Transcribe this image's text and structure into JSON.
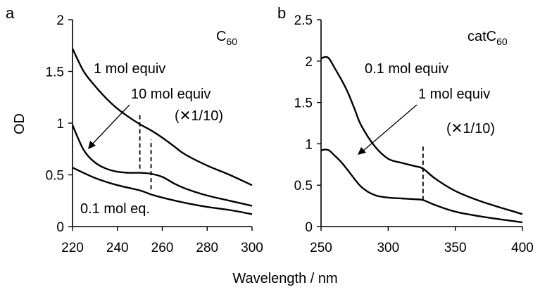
{
  "figure": {
    "ylabel": "OD",
    "xlabel": "Wavelength / nm"
  },
  "chart_data": [
    {
      "type": "line",
      "panel_label": "a",
      "compound_label": "C",
      "compound_subscript": "60",
      "xlim": [
        220,
        300
      ],
      "ylim": [
        0,
        2
      ],
      "x_ticks": [
        "220",
        "240",
        "260",
        "280",
        "300"
      ],
      "y_ticks": [
        "0",
        "0.5",
        "1",
        "1.5",
        "2"
      ],
      "series": [
        {
          "x": [
            220,
            225,
            230,
            235,
            240,
            245,
            250,
            255,
            260,
            265,
            270,
            280,
            290,
            300
          ],
          "y": [
            1.72,
            1.5,
            1.36,
            1.24,
            1.14,
            1.06,
            0.99,
            0.93,
            0.86,
            0.78,
            0.7,
            0.59,
            0.5,
            0.4
          ]
        },
        {
          "x": [
            220,
            225,
            230,
            235,
            240,
            245,
            250,
            255,
            260,
            265,
            270,
            280,
            290,
            300
          ],
          "y": [
            0.98,
            0.74,
            0.62,
            0.56,
            0.53,
            0.52,
            0.52,
            0.51,
            0.48,
            0.42,
            0.37,
            0.3,
            0.25,
            0.2
          ]
        },
        {
          "x": [
            220,
            230,
            240,
            250,
            255,
            260,
            270,
            280,
            290,
            300
          ],
          "y": [
            0.57,
            0.47,
            0.4,
            0.35,
            0.31,
            0.28,
            0.23,
            0.19,
            0.16,
            0.12
          ]
        }
      ],
      "dashed_markers": [
        {
          "x": 250,
          "y_from": 0.56,
          "y_to": 1.08
        },
        {
          "x": 255,
          "y_from": 0.36,
          "y_to": 0.84
        }
      ],
      "annotations": [
        {
          "text": "1 mol equiv"
        },
        {
          "text": "10 mol equiv"
        },
        {
          "text": "(✕1/10)"
        },
        {
          "text": "0.1 mol eq."
        }
      ]
    },
    {
      "type": "line",
      "panel_label": "b",
      "compound_label": "catC",
      "compound_subscript": "60",
      "xlim": [
        250,
        400
      ],
      "ylim": [
        0,
        2.5
      ],
      "x_ticks": [
        "250",
        "300",
        "350",
        "400"
      ],
      "y_ticks": [
        "0",
        "0.5",
        "1",
        "1.5",
        "2",
        "2.5"
      ],
      "series": [
        {
          "x": [
            250,
            253,
            256,
            260,
            265,
            270,
            275,
            280,
            290,
            300,
            310,
            320,
            326,
            335,
            350,
            370,
            400
          ],
          "y": [
            2.03,
            2.05,
            2.03,
            1.92,
            1.78,
            1.62,
            1.42,
            1.22,
            0.97,
            0.82,
            0.77,
            0.73,
            0.7,
            0.58,
            0.43,
            0.3,
            0.15
          ]
        },
        {
          "x": [
            250,
            253,
            256,
            260,
            265,
            270,
            280,
            290,
            300,
            310,
            320,
            326,
            335,
            350,
            370,
            400
          ],
          "y": [
            0.92,
            0.93,
            0.92,
            0.86,
            0.78,
            0.68,
            0.48,
            0.38,
            0.35,
            0.34,
            0.33,
            0.32,
            0.26,
            0.18,
            0.12,
            0.05
          ]
        }
      ],
      "dashed_markers": [
        {
          "x": 326,
          "y_from": 0.32,
          "y_to": 0.98
        }
      ],
      "annotations": [
        {
          "text": "0.1 mol equiv"
        },
        {
          "text": "1 mol equiv"
        },
        {
          "text": "(✕1/10)"
        }
      ]
    }
  ]
}
